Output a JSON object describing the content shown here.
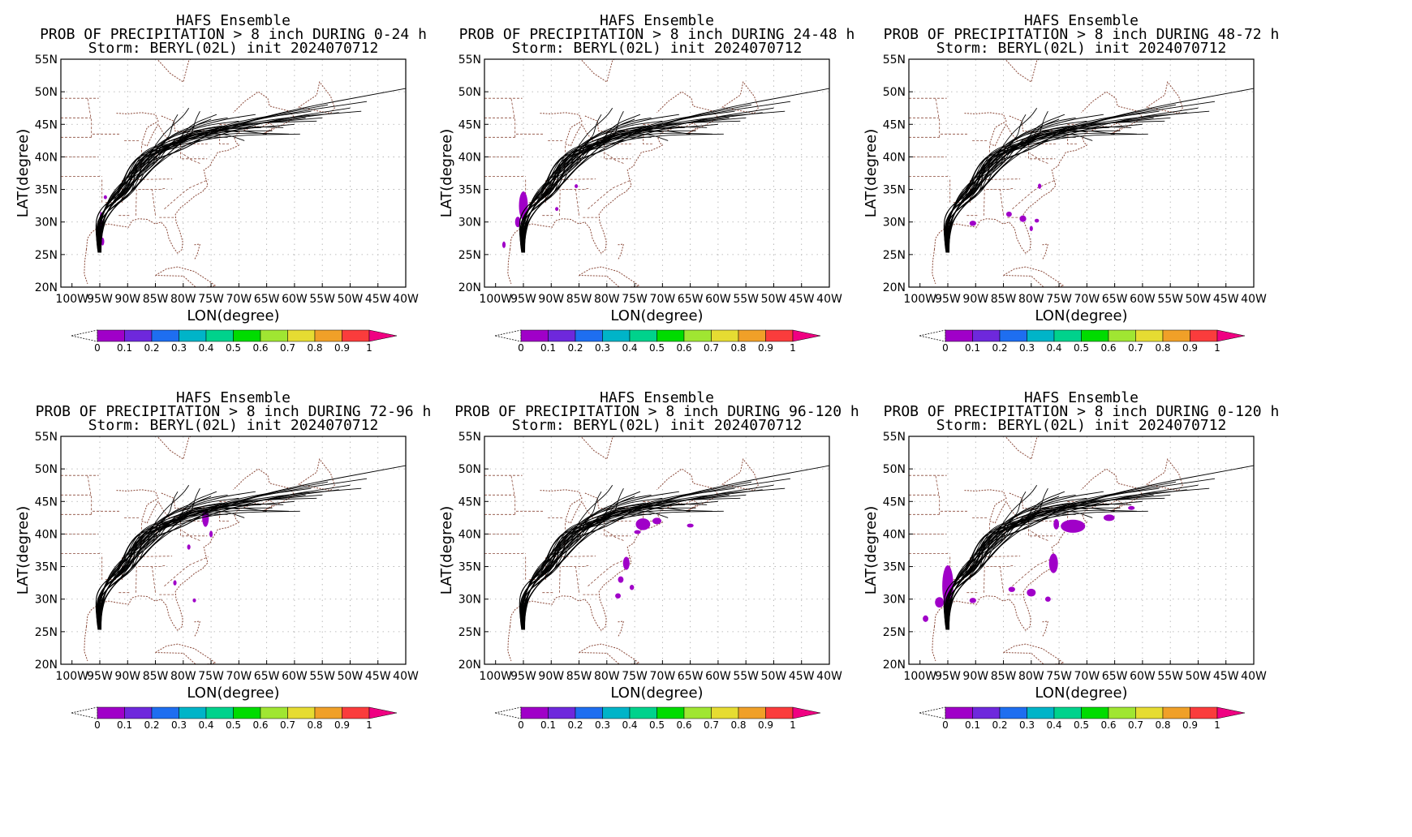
{
  "figure": {
    "model": "HAFS Ensemble",
    "storm_line": "Storm: BERYL(02L) init 2024070712",
    "xlabel": "LON(degree)",
    "ylabel": "LAT(degree)",
    "x_ticks": [
      "100W",
      "95W",
      "90W",
      "85W",
      "80W",
      "75W",
      "70W",
      "65W",
      "60W",
      "55W",
      "50W",
      "45W",
      "40W"
    ],
    "y_ticks": [
      "20N",
      "25N",
      "30N",
      "35N",
      "40N",
      "45N",
      "50N",
      "55N"
    ],
    "colorbar": {
      "ticks": [
        "0",
        "0.1",
        "0.2",
        "0.3",
        "0.4",
        "0.5",
        "0.6",
        "0.7",
        "0.8",
        "0.9",
        "1"
      ],
      "colors": [
        "#a000c8",
        "#6e28dc",
        "#1e6ef0",
        "#00b4c8",
        "#00d28c",
        "#00dc00",
        "#a0e632",
        "#e6dc32",
        "#f0a028",
        "#fa3c3c",
        "#f00082"
      ]
    }
  },
  "panels": [
    {
      "title": "PROB OF PRECIPITATION > 8 inch DURING  0-24 h"
    },
    {
      "title": "PROB OF PRECIPITATION > 8 inch DURING 24-48 h"
    },
    {
      "title": "PROB OF PRECIPITATION > 8 inch DURING 48-72 h"
    },
    {
      "title": "PROB OF PRECIPITATION > 8 inch DURING 72-96 h"
    },
    {
      "title": "PROB OF PRECIPITATION > 8 inch DURING 96-120 h"
    },
    {
      "title": "PROB OF PRECIPITATION > 8 inch DURING 0-120 h"
    }
  ],
  "chart_data": [
    {
      "type": "heatmap",
      "period": "0-24 h",
      "ylim_deg": [
        20,
        55
      ],
      "xlim_deg": [
        -102,
        -40
      ],
      "probability_blobs": [
        [
          -94.8,
          29.0,
          0.3,
          2.6
        ],
        [
          -94.0,
          33.8,
          0.3,
          0.3
        ],
        [
          -94.5,
          27.0,
          0.3,
          0.6
        ]
      ]
    },
    {
      "type": "heatmap",
      "period": "24-48 h",
      "ylim_deg": [
        20,
        55
      ],
      "xlim_deg": [
        -102,
        -40
      ],
      "probability_blobs": [
        [
          -95.0,
          32.5,
          0.8,
          2.2
        ],
        [
          -96.0,
          30.0,
          0.5,
          0.8
        ],
        [
          -98.5,
          26.5,
          0.3,
          0.5
        ],
        [
          -89.0,
          32.0,
          0.3,
          0.3
        ],
        [
          -85.5,
          35.5,
          0.3,
          0.3
        ]
      ]
    },
    {
      "type": "heatmap",
      "period": "48-72 h",
      "ylim_deg": [
        20,
        55
      ],
      "xlim_deg": [
        -102,
        -40
      ],
      "probability_blobs": [
        [
          -90.5,
          29.8,
          0.6,
          0.4
        ],
        [
          -84.0,
          31.2,
          0.5,
          0.4
        ],
        [
          -81.5,
          30.5,
          0.6,
          0.5
        ],
        [
          -78.5,
          35.5,
          0.3,
          0.4
        ],
        [
          -79.0,
          30.2,
          0.4,
          0.3
        ],
        [
          -80.0,
          29.0,
          0.3,
          0.4
        ]
      ]
    },
    {
      "type": "heatmap",
      "period": "72-96 h",
      "ylim_deg": [
        20,
        55
      ],
      "xlim_deg": [
        -102,
        -40
      ],
      "probability_blobs": [
        [
          -76.0,
          42.5,
          0.6,
          1.4
        ],
        [
          -75.0,
          40.0,
          0.3,
          0.5
        ],
        [
          -81.5,
          32.5,
          0.3,
          0.4
        ],
        [
          -78.0,
          29.8,
          0.3,
          0.3
        ],
        [
          -79.0,
          38.0,
          0.3,
          0.4
        ]
      ]
    },
    {
      "type": "heatmap",
      "period": "96-120 h",
      "ylim_deg": [
        20,
        55
      ],
      "xlim_deg": [
        -102,
        -40
      ],
      "probability_blobs": [
        [
          -73.5,
          41.5,
          1.3,
          0.9
        ],
        [
          -71.0,
          42.0,
          0.8,
          0.5
        ],
        [
          -74.5,
          40.3,
          0.6,
          0.3
        ],
        [
          -65.0,
          41.3,
          0.6,
          0.3
        ],
        [
          -76.5,
          35.5,
          0.6,
          1.0
        ],
        [
          -77.5,
          33.0,
          0.5,
          0.5
        ],
        [
          -78.0,
          30.5,
          0.5,
          0.4
        ],
        [
          -75.5,
          31.8,
          0.4,
          0.4
        ]
      ]
    },
    {
      "type": "heatmap",
      "period": "0-120 h",
      "ylim_deg": [
        20,
        55
      ],
      "xlim_deg": [
        -102,
        -40
      ],
      "probability_blobs": [
        [
          -95.0,
          32.0,
          1.0,
          3.2
        ],
        [
          -96.5,
          29.5,
          0.8,
          0.8
        ],
        [
          -99.0,
          27.0,
          0.5,
          0.5
        ],
        [
          -90.5,
          29.8,
          0.6,
          0.4
        ],
        [
          -72.5,
          41.2,
          2.2,
          1.0
        ],
        [
          -66.0,
          42.5,
          1.0,
          0.5
        ],
        [
          -62.0,
          44.0,
          0.6,
          0.3
        ],
        [
          -76.0,
          35.5,
          0.8,
          1.5
        ],
        [
          -80.0,
          31.0,
          0.8,
          0.6
        ],
        [
          -83.5,
          31.5,
          0.6,
          0.4
        ],
        [
          -77.0,
          30.0,
          0.5,
          0.4
        ],
        [
          -75.5,
          41.5,
          0.5,
          0.8
        ]
      ]
    }
  ]
}
